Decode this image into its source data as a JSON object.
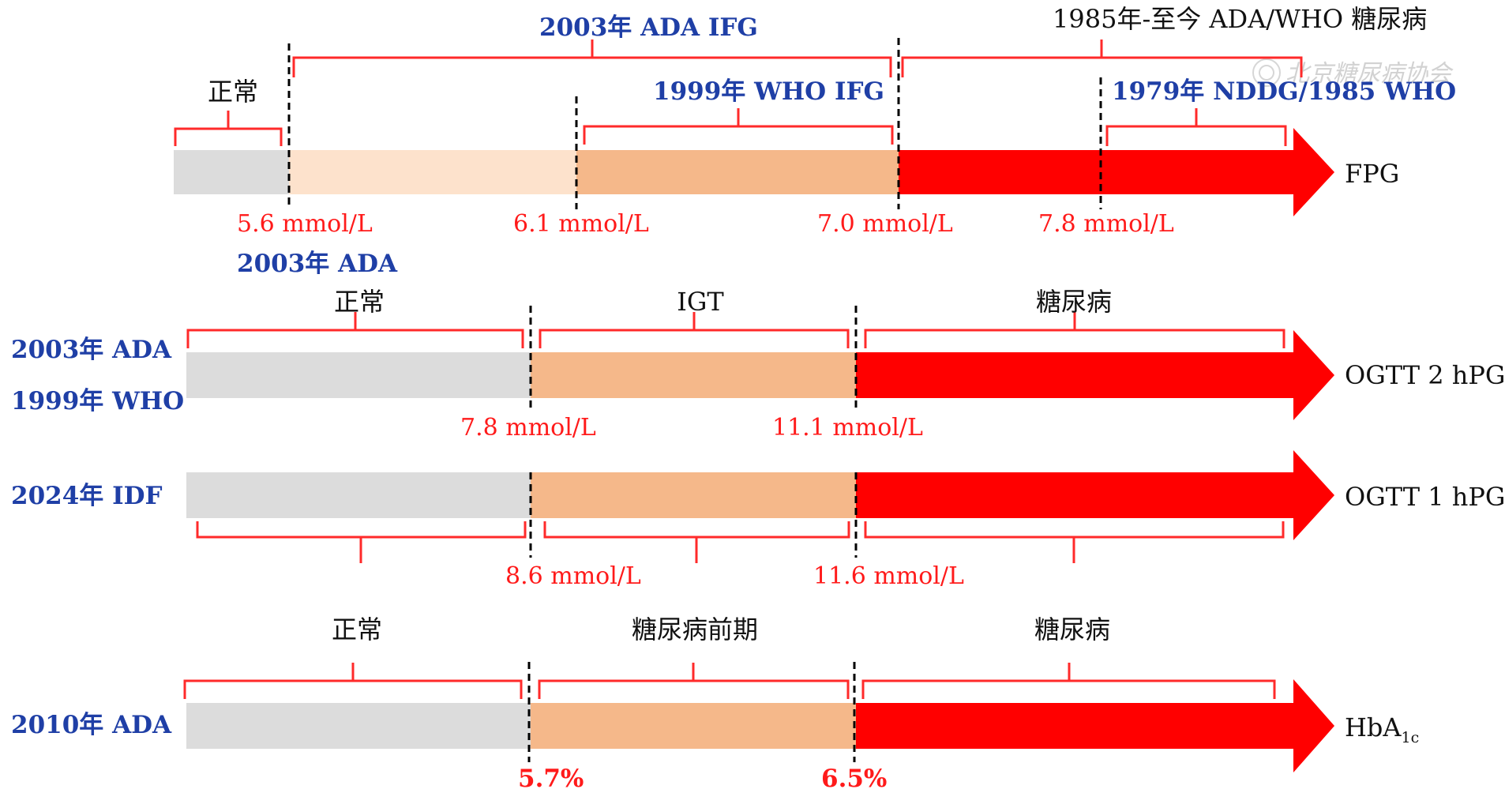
{
  "watermark": "北京糖尿病协会",
  "colors": {
    "normal": "#dcdcdc",
    "light_peach": "#fde2cc",
    "peach": "#f5b88a",
    "red": "#ff0000",
    "blue_text": "#1f3fa6",
    "red_text": "#ff1a1a"
  },
  "fpg": {
    "axis_label": "FPG",
    "normal_label": "正常",
    "ifg_2003_label": "2003年 ADA IFG",
    "ifg_1999_label": "1999年 WHO IFG",
    "dm_1985_label": "1985年-至今 ADA/WHO 糖尿病",
    "dm_1979_label": "1979年 NDDG/1985 WHO",
    "thresholds": [
      "5.6 mmol/L",
      "6.1 mmol/L",
      "7.0 mmol/L",
      "7.8 mmol/L"
    ],
    "criteria_label": "2003年 ADA"
  },
  "ogtt2": {
    "axis_label": "OGTT 2 hPG",
    "criteria": [
      "2003年 ADA",
      "1999年 WHO"
    ],
    "segments": [
      "正常",
      "IGT",
      "糖尿病"
    ],
    "thresholds": [
      "7.8 mmol/L",
      "11.1 mmol/L"
    ]
  },
  "ogtt1": {
    "axis_label": "OGTT 1 hPG",
    "criteria": "2024年 IDF",
    "thresholds": [
      "8.6 mmol/L",
      "11.6 mmol/L"
    ]
  },
  "hba1c": {
    "axis_label_main": "HbA",
    "axis_label_sub": "1c",
    "criteria": "2010年 ADA",
    "segments": [
      "正常",
      "糖尿病前期",
      "糖尿病"
    ],
    "thresholds": [
      "5.7%",
      "6.5%"
    ]
  }
}
